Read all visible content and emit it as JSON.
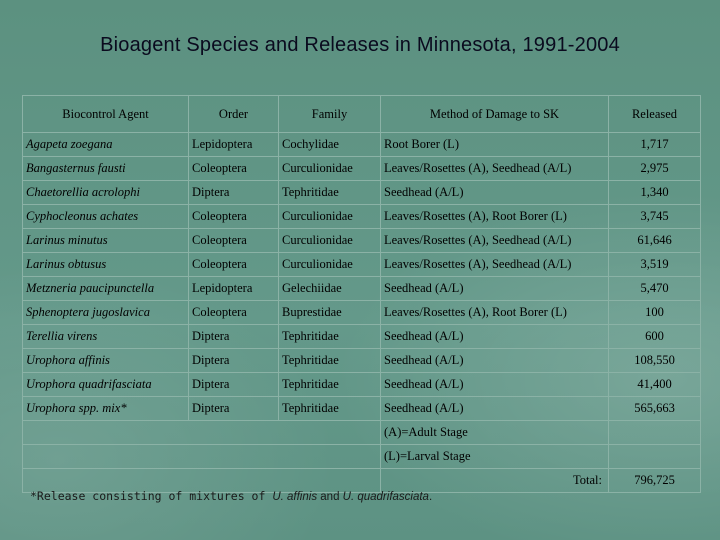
{
  "title": "Bioagent Species and Releases in Minnesota, 1991-2004",
  "headers": {
    "agent": "Biocontrol Agent",
    "order": "Order",
    "family": "Family",
    "method": "Method of Damage to SK",
    "released": "Released"
  },
  "rows": [
    {
      "agent": "Agapeta zoegana",
      "order": "Lepidoptera",
      "family": "Cochylidae",
      "method": "Root Borer (L)",
      "released": "1,717"
    },
    {
      "agent": "Bangasternus fausti",
      "order": "Coleoptera",
      "family": "Curculionidae",
      "method": "Leaves/Rosettes (A), Seedhead (A/L)",
      "released": "2,975"
    },
    {
      "agent": "Chaetorellia acrolophi",
      "order": "Diptera",
      "family": "Tephritidae",
      "method": "Seedhead (A/L)",
      "released": "1,340"
    },
    {
      "agent": "Cyphocleonus achates",
      "order": "Coleoptera",
      "family": "Curculionidae",
      "method": "Leaves/Rosettes (A), Root Borer (L)",
      "released": "3,745"
    },
    {
      "agent": "Larinus minutus",
      "order": "Coleoptera",
      "family": "Curculionidae",
      "method": "Leaves/Rosettes (A), Seedhead (A/L)",
      "released": "61,646"
    },
    {
      "agent": "Larinus obtusus",
      "order": "Coleoptera",
      "family": "Curculionidae",
      "method": "Leaves/Rosettes (A), Seedhead (A/L)",
      "released": "3,519"
    },
    {
      "agent": "Metzneria paucipunctella",
      "order": "Lepidoptera",
      "family": "Gelechiidae",
      "method": "Seedhead (A/L)",
      "released": "5,470"
    },
    {
      "agent": "Sphenoptera jugoslavica",
      "order": "Coleoptera",
      "family": "Buprestidae",
      "method": "Leaves/Rosettes (A), Root Borer (L)",
      "released": "100"
    },
    {
      "agent": "Terellia virens",
      "order": "Diptera",
      "family": "Tephritidae",
      "method": "Seedhead (A/L)",
      "released": "600"
    },
    {
      "agent": "Urophora affinis",
      "order": "Diptera",
      "family": "Tephritidae",
      "method": "Seedhead (A/L)",
      "released": "108,550"
    },
    {
      "agent": "Urophora quadrifasciata",
      "order": "Diptera",
      "family": "Tephritidae",
      "method": "Seedhead (A/L)",
      "released": "41,400"
    },
    {
      "agent": "Urophora spp. mix*",
      "order": "Diptera",
      "family": "Tephritidae",
      "method": "Seedhead (A/L)",
      "released": "565,663"
    }
  ],
  "legend": {
    "adult": "(A)=Adult Stage",
    "larval": "(L)=Larval Stage"
  },
  "total": {
    "label": "Total:",
    "value": "796,725"
  },
  "footnote": {
    "prefix": "*Release consisting of mixtures of ",
    "species1": "U. affinis",
    "middle": " and ",
    "species2": "U. quadrifasciata",
    "suffix": "."
  }
}
